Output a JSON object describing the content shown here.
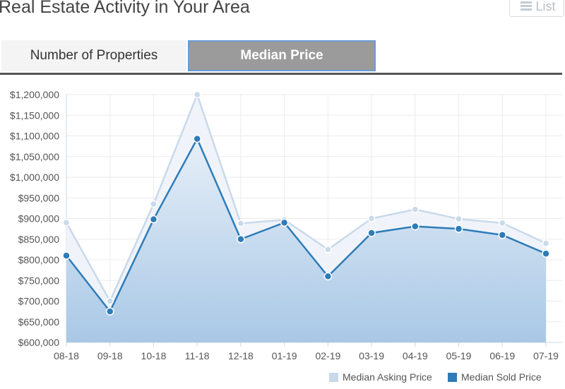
{
  "header": {
    "title": "Real Estate Activity in Your Area",
    "list_label": "List"
  },
  "tabs": [
    {
      "label": "Number of Properties",
      "active": false
    },
    {
      "label": "Median Price",
      "active": true
    }
  ],
  "colors": {
    "asking": "#c8d9ea",
    "sold": "#2e7cb8",
    "axis": "#ccd6eb",
    "grid": "#ebebeb"
  },
  "chart_data": {
    "type": "area",
    "categories": [
      "08-18",
      "09-18",
      "10-18",
      "11-18",
      "12-18",
      "01-19",
      "02-19",
      "03-19",
      "04-19",
      "05-19",
      "06-19",
      "07-19"
    ],
    "series": [
      {
        "name": "Median Asking Price",
        "values": [
          890000,
          700000,
          935000,
          1200000,
          888000,
          897000,
          825000,
          900000,
          922000,
          899000,
          889000,
          840000
        ]
      },
      {
        "name": "Median Sold Price",
        "values": [
          810000,
          675000,
          898000,
          1093000,
          850000,
          890000,
          760000,
          865000,
          881000,
          875000,
          860000,
          815000
        ]
      }
    ],
    "yticks": [
      "$600,000",
      "$650,000",
      "$700,000",
      "$750,000",
      "$800,000",
      "$850,000",
      "$900,000",
      "$950,000",
      "$1,000,000",
      "$1,050,000",
      "$1,100,000",
      "$1,150,000",
      "$1,200,000"
    ],
    "ylim": [
      600000,
      1200000
    ],
    "legend": "bottom-right",
    "grid": true
  }
}
